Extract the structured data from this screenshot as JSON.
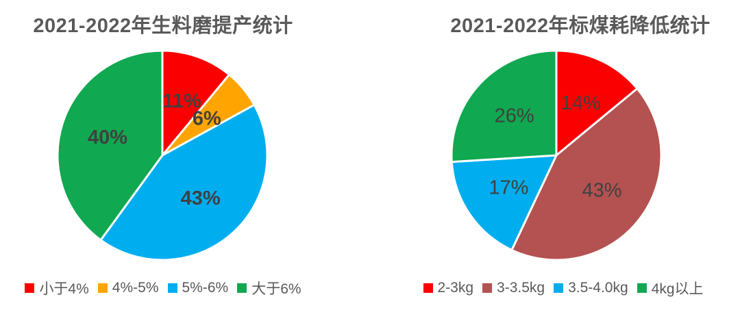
{
  "styles": {
    "background": "#ffffff",
    "title_color": "#595959",
    "slice_label_color": "#404040",
    "legend_text_color": "#595959",
    "slice_border_color": "#ffffff"
  },
  "chart_data": [
    {
      "type": "pie",
      "title": "2021-2022年生料磨提产统计",
      "categories": [
        "小于4%",
        "4%-5%",
        "5%-6%",
        "大于6%"
      ],
      "values": [
        11,
        6,
        43,
        40
      ],
      "labels": [
        "11%",
        "6%",
        "43%",
        "40%"
      ],
      "colors": [
        "#fb0000",
        "#ffa400",
        "#00aeef",
        "#10a850"
      ],
      "legend_position": "bottom",
      "start_angle_deg": 0,
      "direction": "clockwise"
    },
    {
      "type": "pie",
      "title": "2021-2022年标煤耗降低统计",
      "categories": [
        "2-3kg",
        "3-3.5kg",
        "3.5-4.0kg",
        "4kg以上"
      ],
      "values": [
        14,
        43,
        17,
        26
      ],
      "labels": [
        "14%",
        "43%",
        "17%",
        "26%"
      ],
      "colors": [
        "#fb0000",
        "#b45251",
        "#00aeef",
        "#10a850"
      ],
      "legend_position": "bottom",
      "start_angle_deg": 0,
      "direction": "clockwise"
    }
  ]
}
